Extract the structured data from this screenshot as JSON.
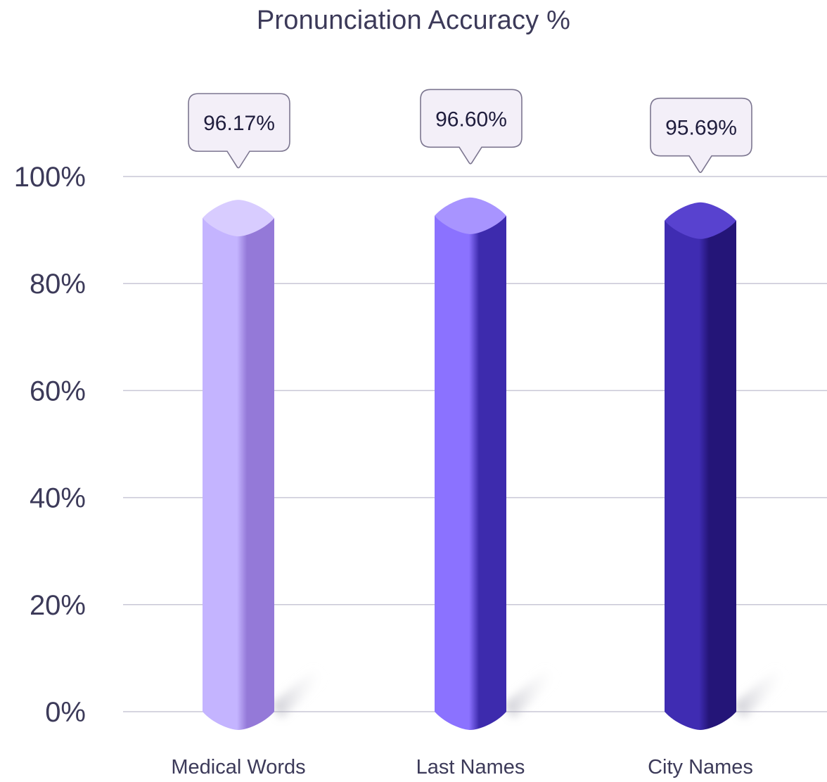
{
  "chart_data": {
    "type": "bar",
    "title": "Pronunciation Accuracy %",
    "categories": [
      "Medical Words",
      "Last Names",
      "City Names"
    ],
    "values": [
      96.17,
      96.6,
      95.69
    ],
    "value_labels": [
      "96.17%",
      "96.60%",
      "95.69%"
    ],
    "ylim": [
      0,
      100
    ],
    "yticks": [
      0,
      20,
      40,
      60,
      80,
      100
    ],
    "ytick_labels": [
      "0%",
      "20%",
      "40%",
      "60%",
      "80%",
      "100%"
    ],
    "grid": true,
    "colors": [
      {
        "light": "#c4b4ff",
        "dark": "#9479d8",
        "top": "#d8ccff"
      },
      {
        "light": "#8b72ff",
        "dark": "#3d2bad",
        "top": "#a894ff"
      },
      {
        "light": "#3f2cb2",
        "dark": "#241578",
        "top": "#5842cf"
      }
    ]
  }
}
